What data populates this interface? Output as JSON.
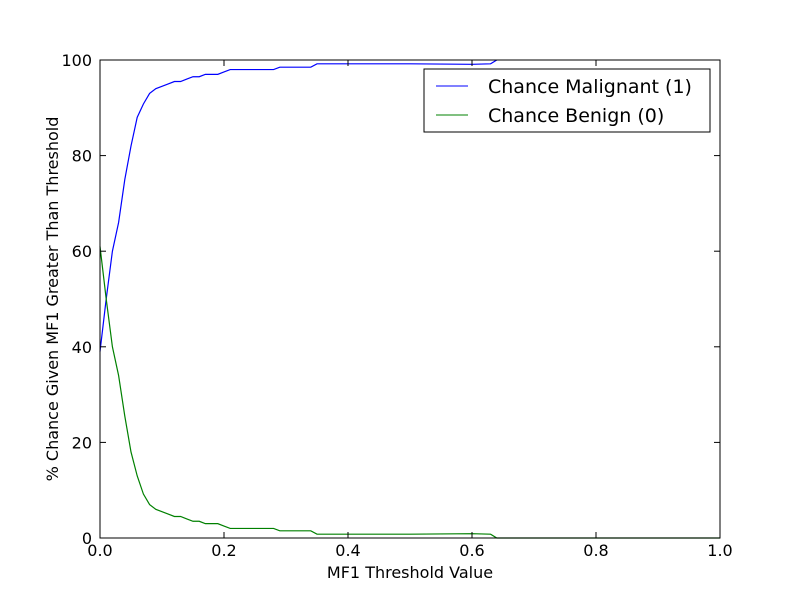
{
  "chart_data": {
    "type": "line",
    "title": "",
    "xlabel": "MF1 Threshold Value",
    "ylabel": "% Chance Given MF1 Greater Than Threshold",
    "xlim": [
      0,
      1
    ],
    "ylim": [
      0,
      100
    ],
    "xticks": [
      "0.0",
      "0.2",
      "0.4",
      "0.6",
      "0.8",
      "1.0"
    ],
    "yticks": [
      "0",
      "20",
      "40",
      "60",
      "80",
      "100"
    ],
    "grid": false,
    "legend_position": "top-right",
    "series": [
      {
        "name": "Chance Malignant (1)",
        "color": "#0000ff",
        "x": [
          0,
          0.01,
          0.02,
          0.03,
          0.04,
          0.05,
          0.06,
          0.07,
          0.08,
          0.09,
          0.1,
          0.11,
          0.12,
          0.13,
          0.14,
          0.15,
          0.16,
          0.17,
          0.18,
          0.19,
          0.2,
          0.21,
          0.22,
          0.23,
          0.24,
          0.25,
          0.26,
          0.27,
          0.28,
          0.29,
          0.3,
          0.31,
          0.32,
          0.33,
          0.34,
          0.35,
          0.4,
          0.5,
          0.6,
          0.63,
          0.64
        ],
        "y": [
          39,
          50,
          60,
          66,
          75,
          82,
          88,
          90.8,
          93,
          94,
          94.5,
          95,
          95.5,
          95.5,
          96,
          96.5,
          96.5,
          97,
          97,
          97,
          97.5,
          98,
          98,
          98,
          98,
          98,
          98,
          98,
          98,
          98.5,
          98.5,
          98.5,
          98.5,
          98.5,
          98.5,
          99.2,
          99.2,
          99.2,
          99.1,
          99.2,
          100
        ]
      },
      {
        "name": "Chance Benign (0)",
        "color": "#008000",
        "x": [
          0,
          0.01,
          0.02,
          0.03,
          0.04,
          0.05,
          0.06,
          0.07,
          0.08,
          0.09,
          0.1,
          0.11,
          0.12,
          0.13,
          0.14,
          0.15,
          0.16,
          0.17,
          0.18,
          0.19,
          0.2,
          0.21,
          0.22,
          0.23,
          0.24,
          0.25,
          0.26,
          0.27,
          0.28,
          0.29,
          0.3,
          0.31,
          0.32,
          0.33,
          0.34,
          0.35,
          0.4,
          0.5,
          0.6,
          0.63,
          0.64,
          1.0
        ],
        "y": [
          61,
          50,
          40,
          34,
          25.5,
          18,
          13,
          9.2,
          7,
          6,
          5.5,
          5,
          4.5,
          4.5,
          4,
          3.5,
          3.5,
          3,
          3,
          3,
          2.5,
          2,
          2,
          2,
          2,
          2,
          2,
          2,
          2,
          1.5,
          1.5,
          1.5,
          1.5,
          1.5,
          1.5,
          0.8,
          0.8,
          0.8,
          0.9,
          0.8,
          0,
          0
        ]
      }
    ]
  }
}
